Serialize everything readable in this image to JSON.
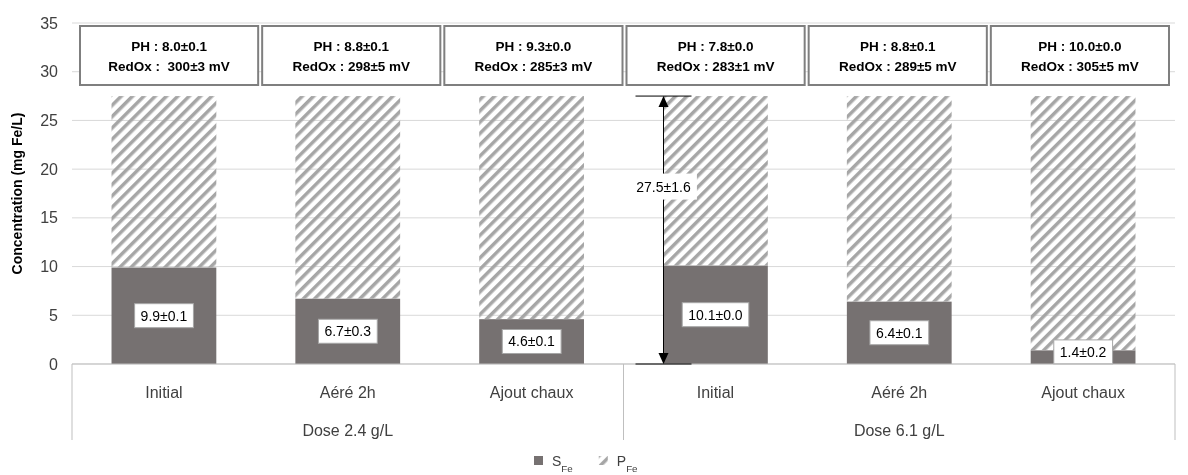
{
  "chart_data": {
    "type": "bar",
    "stacked": true,
    "ylabel": "Concentration (mg Fe/L)",
    "categories": [
      "Initial",
      "Aéré 2h",
      "Ajout chaux",
      "Initial",
      "Aéré 2h",
      "Ajout chaux"
    ],
    "series": [
      {
        "name": "S$_{Fe}$",
        "color": "#767171",
        "values": [
          9.9,
          6.7,
          4.6,
          10.1,
          6.4,
          1.4
        ],
        "value_labels": [
          "9.9±0.1",
          "6.7±0.3",
          "4.6±0.1",
          "10.1±0.0",
          "6.4±0.1",
          "1.4±0.2"
        ]
      },
      {
        "name": "P$_{Fe}$",
        "color": "#a6a6a6",
        "values": [
          17.6,
          20.8,
          22.9,
          17.4,
          21.1,
          26.1
        ]
      }
    ],
    "ylim": [
      0,
      35
    ],
    "yticks": [
      0,
      5,
      10,
      15,
      20,
      25,
      30,
      35
    ],
    "grid": "y",
    "legend": "bottom",
    "annotations": [
      "PH : 8.0±0.1\nRedOx :  300±3 mV",
      "PH : 8.8±0.1\nRedOx : 298±5 mV",
      "PH : 9.3±0.0\nRedOx : 285±3 mV",
      "PH : 7.8±0.0\nRedOx : 283±1 mV",
      "PH : 8.8±0.1\nRedOx : 289±5 mV",
      "PH : 10.0±0.0\nRedOx : 305±5 mV",
      "27.5±1.6",
      "Dose 2.4 g/L",
      "Dose 6.1 g/L"
    ]
  }
}
